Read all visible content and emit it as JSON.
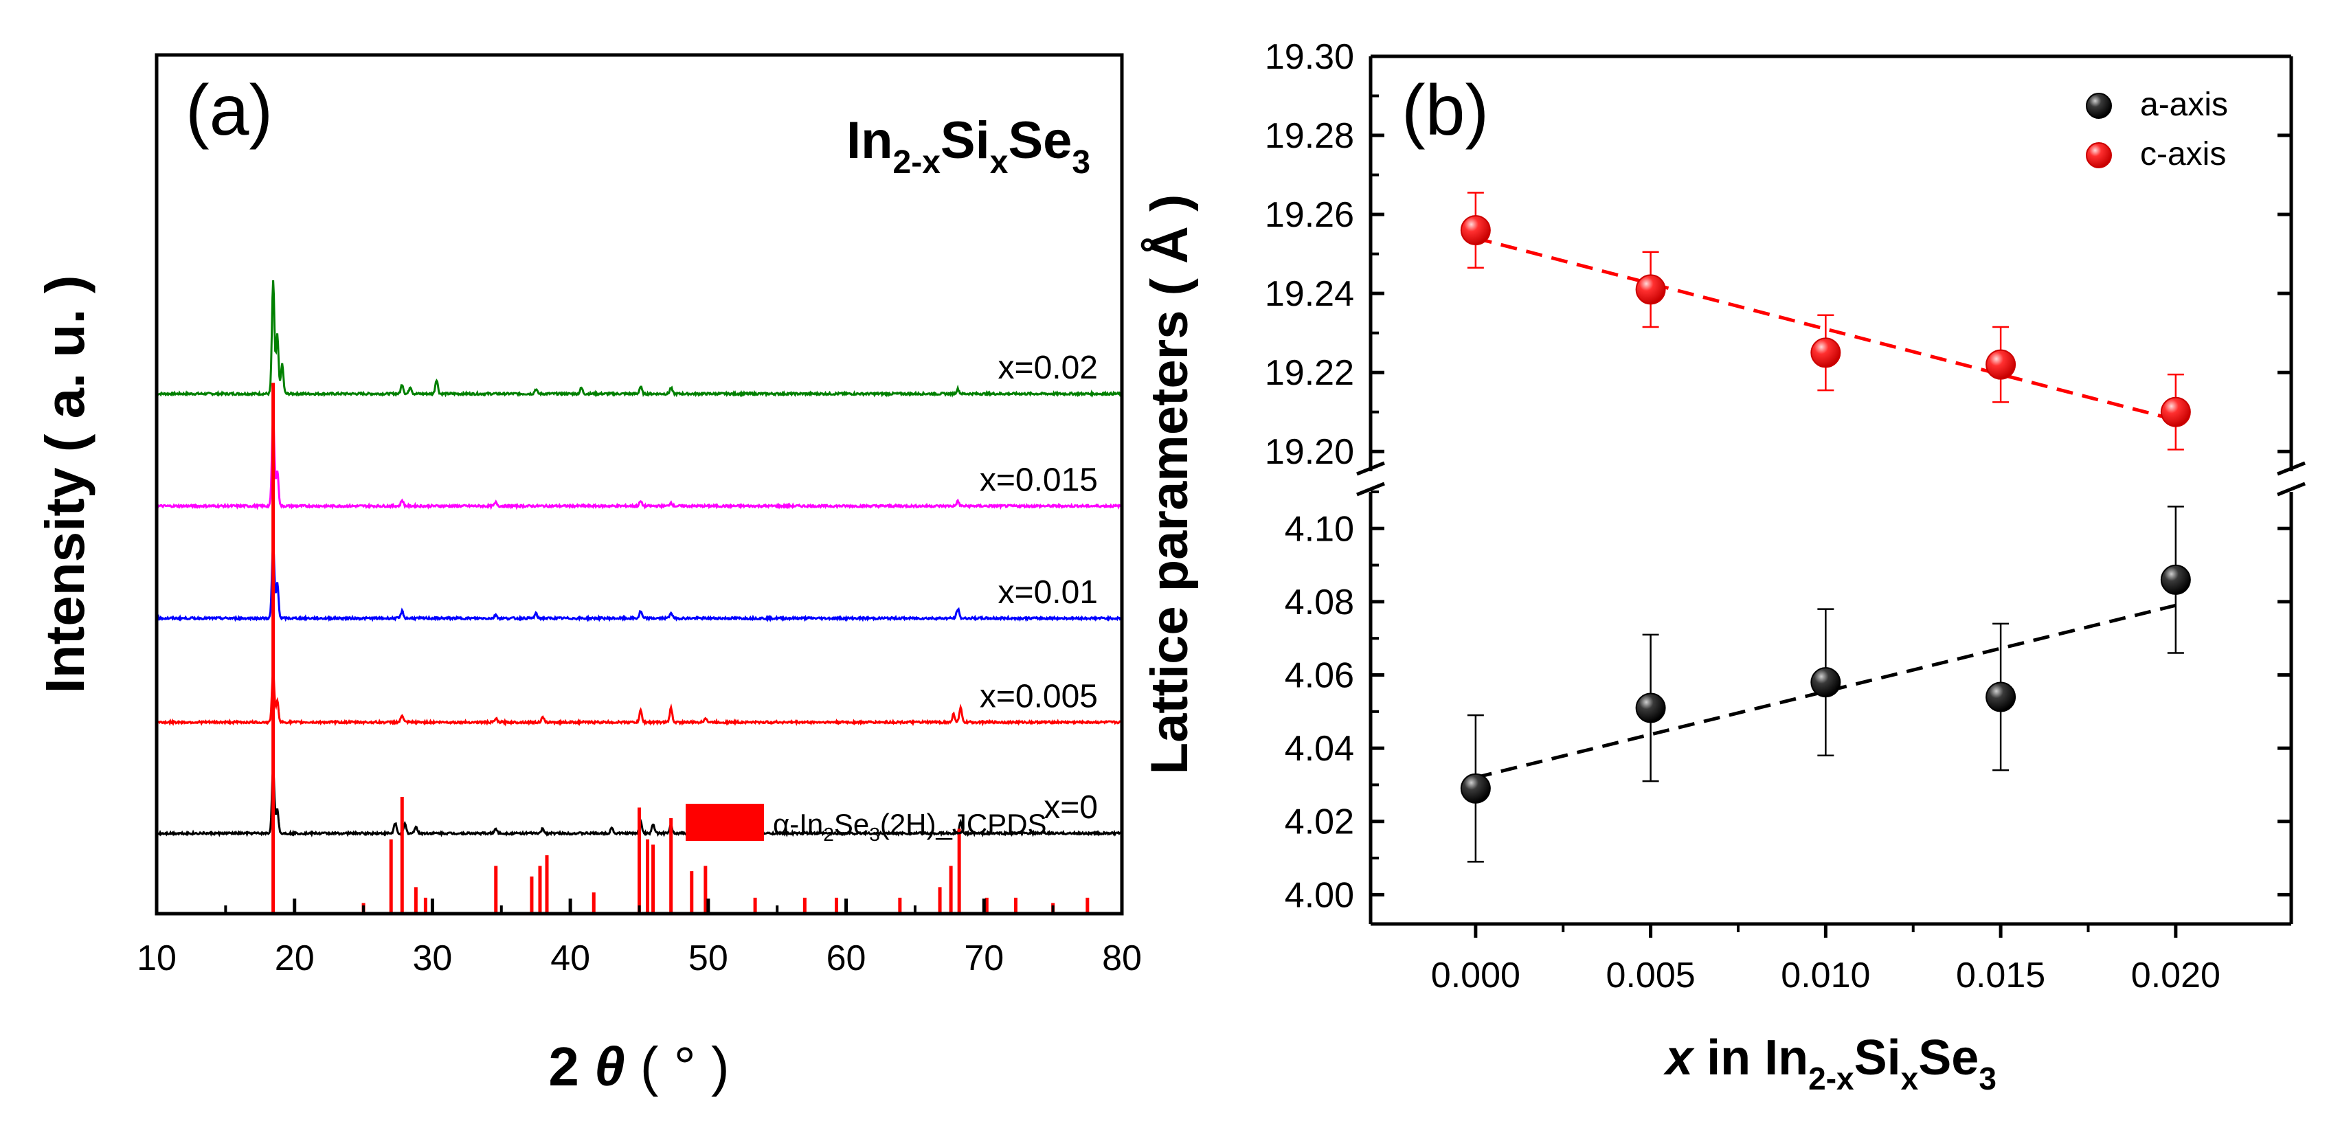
{
  "chart_data": [
    {
      "panel": "(a)",
      "type": "line",
      "title": "In2-xSixSe3",
      "title_parts": {
        "base1": "In",
        "sub1": "2-x",
        "base2": "Si",
        "sub2": "x",
        "base3": "Se",
        "sub3": "3"
      },
      "xlabel": {
        "prefix": "2 ",
        "theta": "θ",
        "unit": " ( ° )"
      },
      "ylabel": "Intensity ( a. u. )",
      "xlim": [
        10,
        80
      ],
      "xticks": [
        10,
        20,
        30,
        40,
        50,
        60,
        70,
        80
      ],
      "xtick_labels": [
        "10",
        "20",
        "30",
        "40",
        "50",
        "60",
        "70",
        "80"
      ],
      "series": [
        {
          "name": "x=0.02",
          "color": "#008000",
          "baseline": 4.4,
          "peaks": [
            [
              18.45,
              0.95
            ],
            [
              18.75,
              0.5
            ],
            [
              19.1,
              0.25
            ],
            [
              27.8,
              0.08
            ],
            [
              28.4,
              0.06
            ],
            [
              30.3,
              0.12
            ],
            [
              37.5,
              0.04
            ],
            [
              40.8,
              0.05
            ],
            [
              45.1,
              0.06
            ],
            [
              47.3,
              0.05
            ],
            [
              68.1,
              0.04
            ]
          ]
        },
        {
          "name": "x=0.015",
          "color": "#ff00ff",
          "baseline": 3.45,
          "peaks": [
            [
              18.45,
              0.75
            ],
            [
              18.75,
              0.3
            ],
            [
              27.8,
              0.05
            ],
            [
              34.6,
              0.03
            ],
            [
              45.1,
              0.04
            ],
            [
              47.3,
              0.03
            ],
            [
              68.1,
              0.04
            ]
          ]
        },
        {
          "name": "x=0.01",
          "color": "#0000ff",
          "baseline": 2.5,
          "peaks": [
            [
              18.45,
              0.62
            ],
            [
              18.75,
              0.3
            ],
            [
              27.8,
              0.06
            ],
            [
              34.6,
              0.03
            ],
            [
              37.5,
              0.04
            ],
            [
              45.1,
              0.06
            ],
            [
              47.3,
              0.05
            ],
            [
              68.1,
              0.08
            ]
          ]
        },
        {
          "name": "x=0.005",
          "color": "#ff0000",
          "baseline": 1.62,
          "peaks": [
            [
              18.45,
              0.42
            ],
            [
              18.75,
              0.18
            ],
            [
              27.8,
              0.06
            ],
            [
              34.6,
              0.03
            ],
            [
              38,
              0.04
            ],
            [
              45.1,
              0.1
            ],
            [
              47.3,
              0.12
            ],
            [
              49.8,
              0.04
            ],
            [
              67.8,
              0.07
            ],
            [
              68.3,
              0.12
            ]
          ]
        },
        {
          "name": "x=0",
          "color": "#000000",
          "baseline": 0.68,
          "peaks": [
            [
              18.45,
              0.55
            ],
            [
              18.75,
              0.2
            ],
            [
              27.3,
              0.09
            ],
            [
              28,
              0.08
            ],
            [
              28.8,
              0.06
            ],
            [
              34.6,
              0.04
            ],
            [
              38,
              0.04
            ],
            [
              43,
              0.05
            ],
            [
              45.1,
              0.11
            ],
            [
              46,
              0.08
            ],
            [
              47.3,
              0.07
            ],
            [
              49.8,
              0.05
            ],
            [
              68.3,
              0.09
            ]
          ]
        }
      ],
      "reference": {
        "name": "α-In2Se3(2H)_JCPDS",
        "label_parts": {
          "pre": "α-In",
          "sub1": "2",
          "mid": "Se",
          "sub2": "3",
          "post": "(2H)_JCPDS"
        },
        "color": "#ff0000",
        "sticks": [
          [
            18.45,
            1.0
          ],
          [
            25.0,
            0.02
          ],
          [
            27.0,
            0.14
          ],
          [
            27.8,
            0.22
          ],
          [
            28.8,
            0.05
          ],
          [
            29.5,
            0.03
          ],
          [
            34.6,
            0.09
          ],
          [
            37.2,
            0.07
          ],
          [
            37.8,
            0.09
          ],
          [
            38.3,
            0.11
          ],
          [
            41.7,
            0.04
          ],
          [
            45.0,
            0.2
          ],
          [
            45.6,
            0.14
          ],
          [
            46.0,
            0.13
          ],
          [
            47.3,
            0.18
          ],
          [
            48.8,
            0.08
          ],
          [
            49.8,
            0.09
          ],
          [
            53.4,
            0.03
          ],
          [
            57.0,
            0.03
          ],
          [
            59.3,
            0.03
          ],
          [
            63.9,
            0.03
          ],
          [
            66.8,
            0.05
          ],
          [
            67.6,
            0.09
          ],
          [
            68.2,
            0.16
          ],
          [
            70.2,
            0.03
          ],
          [
            72.3,
            0.03
          ],
          [
            75.0,
            0.02
          ],
          [
            77.5,
            0.03
          ]
        ]
      }
    },
    {
      "panel": "(b)",
      "type": "scatter",
      "xlabel_parts": {
        "var": "x",
        "mid": " in In",
        "sub1": "2-x",
        "mid2": "Si",
        "sub2": "x",
        "mid3": "Se",
        "sub3": "3"
      },
      "ylabel": "Lattice parameters ( Å )",
      "xlim": [
        -0.003,
        0.0233
      ],
      "xticks": [
        0.0,
        0.005,
        0.01,
        0.015,
        0.02
      ],
      "xtick_labels": [
        "0.000",
        "0.005",
        "0.010",
        "0.015",
        "0.020"
      ],
      "upper": {
        "ylim": [
          19.195,
          19.3
        ],
        "yticks": [
          19.2,
          19.22,
          19.24,
          19.26,
          19.28,
          19.3
        ],
        "ytick_labels": [
          "19.20",
          "19.22",
          "19.24",
          "19.26",
          "19.28",
          "19.30"
        ]
      },
      "lower": {
        "ylim": [
          3.992,
          4.11
        ],
        "yticks": [
          4.0,
          4.02,
          4.04,
          4.06,
          4.08,
          4.1
        ],
        "ytick_labels": [
          "4.00",
          "4.02",
          "4.04",
          "4.06",
          "4.08",
          "4.10"
        ]
      },
      "series": [
        {
          "name": "a-axis",
          "color": "#000000",
          "axis": "lower",
          "x": [
            0.0,
            0.005,
            0.01,
            0.015,
            0.02
          ],
          "y": [
            4.029,
            4.051,
            4.058,
            4.054,
            4.086
          ],
          "yerr": [
            0.02,
            0.02,
            0.02,
            0.02,
            0.02
          ],
          "fit": [
            [
              0.0,
              4.032
            ],
            [
              0.02,
              4.079
            ]
          ]
        },
        {
          "name": "c-axis",
          "color": "#ff0000",
          "axis": "upper",
          "x": [
            0.0,
            0.005,
            0.01,
            0.015,
            0.02
          ],
          "y": [
            19.256,
            19.241,
            19.225,
            19.222,
            19.21
          ],
          "yerr": [
            0.0095,
            0.0095,
            0.0095,
            0.0095,
            0.0095
          ],
          "fit": [
            [
              0.0,
              19.254
            ],
            [
              0.02,
              19.208
            ]
          ]
        }
      ]
    }
  ]
}
